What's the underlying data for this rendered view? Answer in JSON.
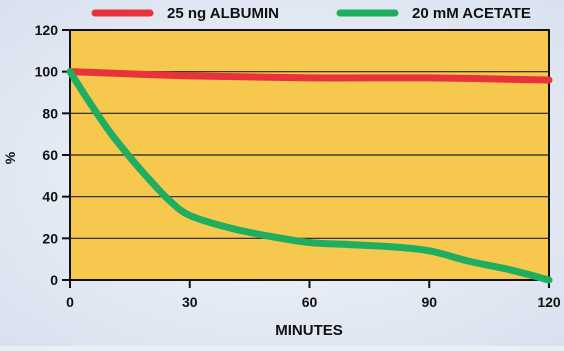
{
  "chart_data": {
    "type": "line",
    "title": "",
    "xlabel": "MINUTES",
    "ylabel": "%",
    "xlim": [
      0,
      120
    ],
    "ylim": [
      0,
      120
    ],
    "x_ticks": [
      0,
      30,
      60,
      90,
      120
    ],
    "y_ticks": [
      0,
      20,
      40,
      60,
      80,
      100,
      120
    ],
    "grid": true,
    "legend_position": "top",
    "plot_background": "#f6c84e",
    "series": [
      {
        "name": "25 ng ALBUMIN",
        "color": "#e8323c",
        "x": [
          0,
          30,
          60,
          90,
          120
        ],
        "y": [
          100,
          98,
          97,
          97,
          96
        ]
      },
      {
        "name": "20 mM ACETATE",
        "color": "#1fae5f",
        "x": [
          0,
          5,
          10,
          15,
          20,
          25,
          30,
          40,
          50,
          60,
          70,
          80,
          90,
          100,
          110,
          120
        ],
        "y": [
          100,
          85,
          71,
          59,
          48,
          38,
          31,
          25,
          21,
          18,
          17,
          16,
          14,
          9,
          5,
          0
        ]
      }
    ]
  }
}
